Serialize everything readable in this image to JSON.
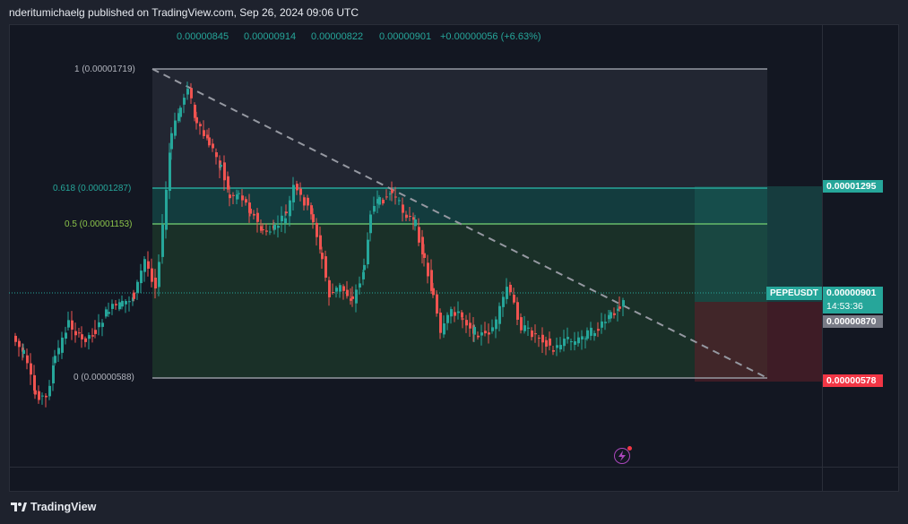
{
  "header": {
    "published": "nderitumichaelg published on TradingView.com, Sep 26, 2024 09:06 UTC"
  },
  "ohlc": {
    "open": "0.00000845",
    "high": "0.00000914",
    "low": "0.00000822",
    "close": "0.00000901",
    "change": "+0.00000056 (+6.63%)"
  },
  "fib_levels": [
    {
      "label": "1 (0.00001719)",
      "color": "#b2b5be"
    },
    {
      "label": "0.618 (0.00001287)",
      "color": "#26a69a"
    },
    {
      "label": "0.5 (0.00001153)",
      "color": "#8bc34a"
    },
    {
      "label": "0 (0.00000588)",
      "color": "#b2b5be"
    }
  ],
  "price_axis": {
    "target": "0.00001295",
    "current": "0.00000901",
    "countdown": "14:53:36",
    "entry": "0.00000870",
    "stop": "0.00000578"
  },
  "symbol": "PEPEUSDT",
  "brand": "TradingView",
  "icons": [
    "lightning-icon",
    "tradingview-logo-icon"
  ],
  "colors": {
    "up": "#26a69a",
    "down": "#ef5350",
    "background": "#131722"
  }
}
